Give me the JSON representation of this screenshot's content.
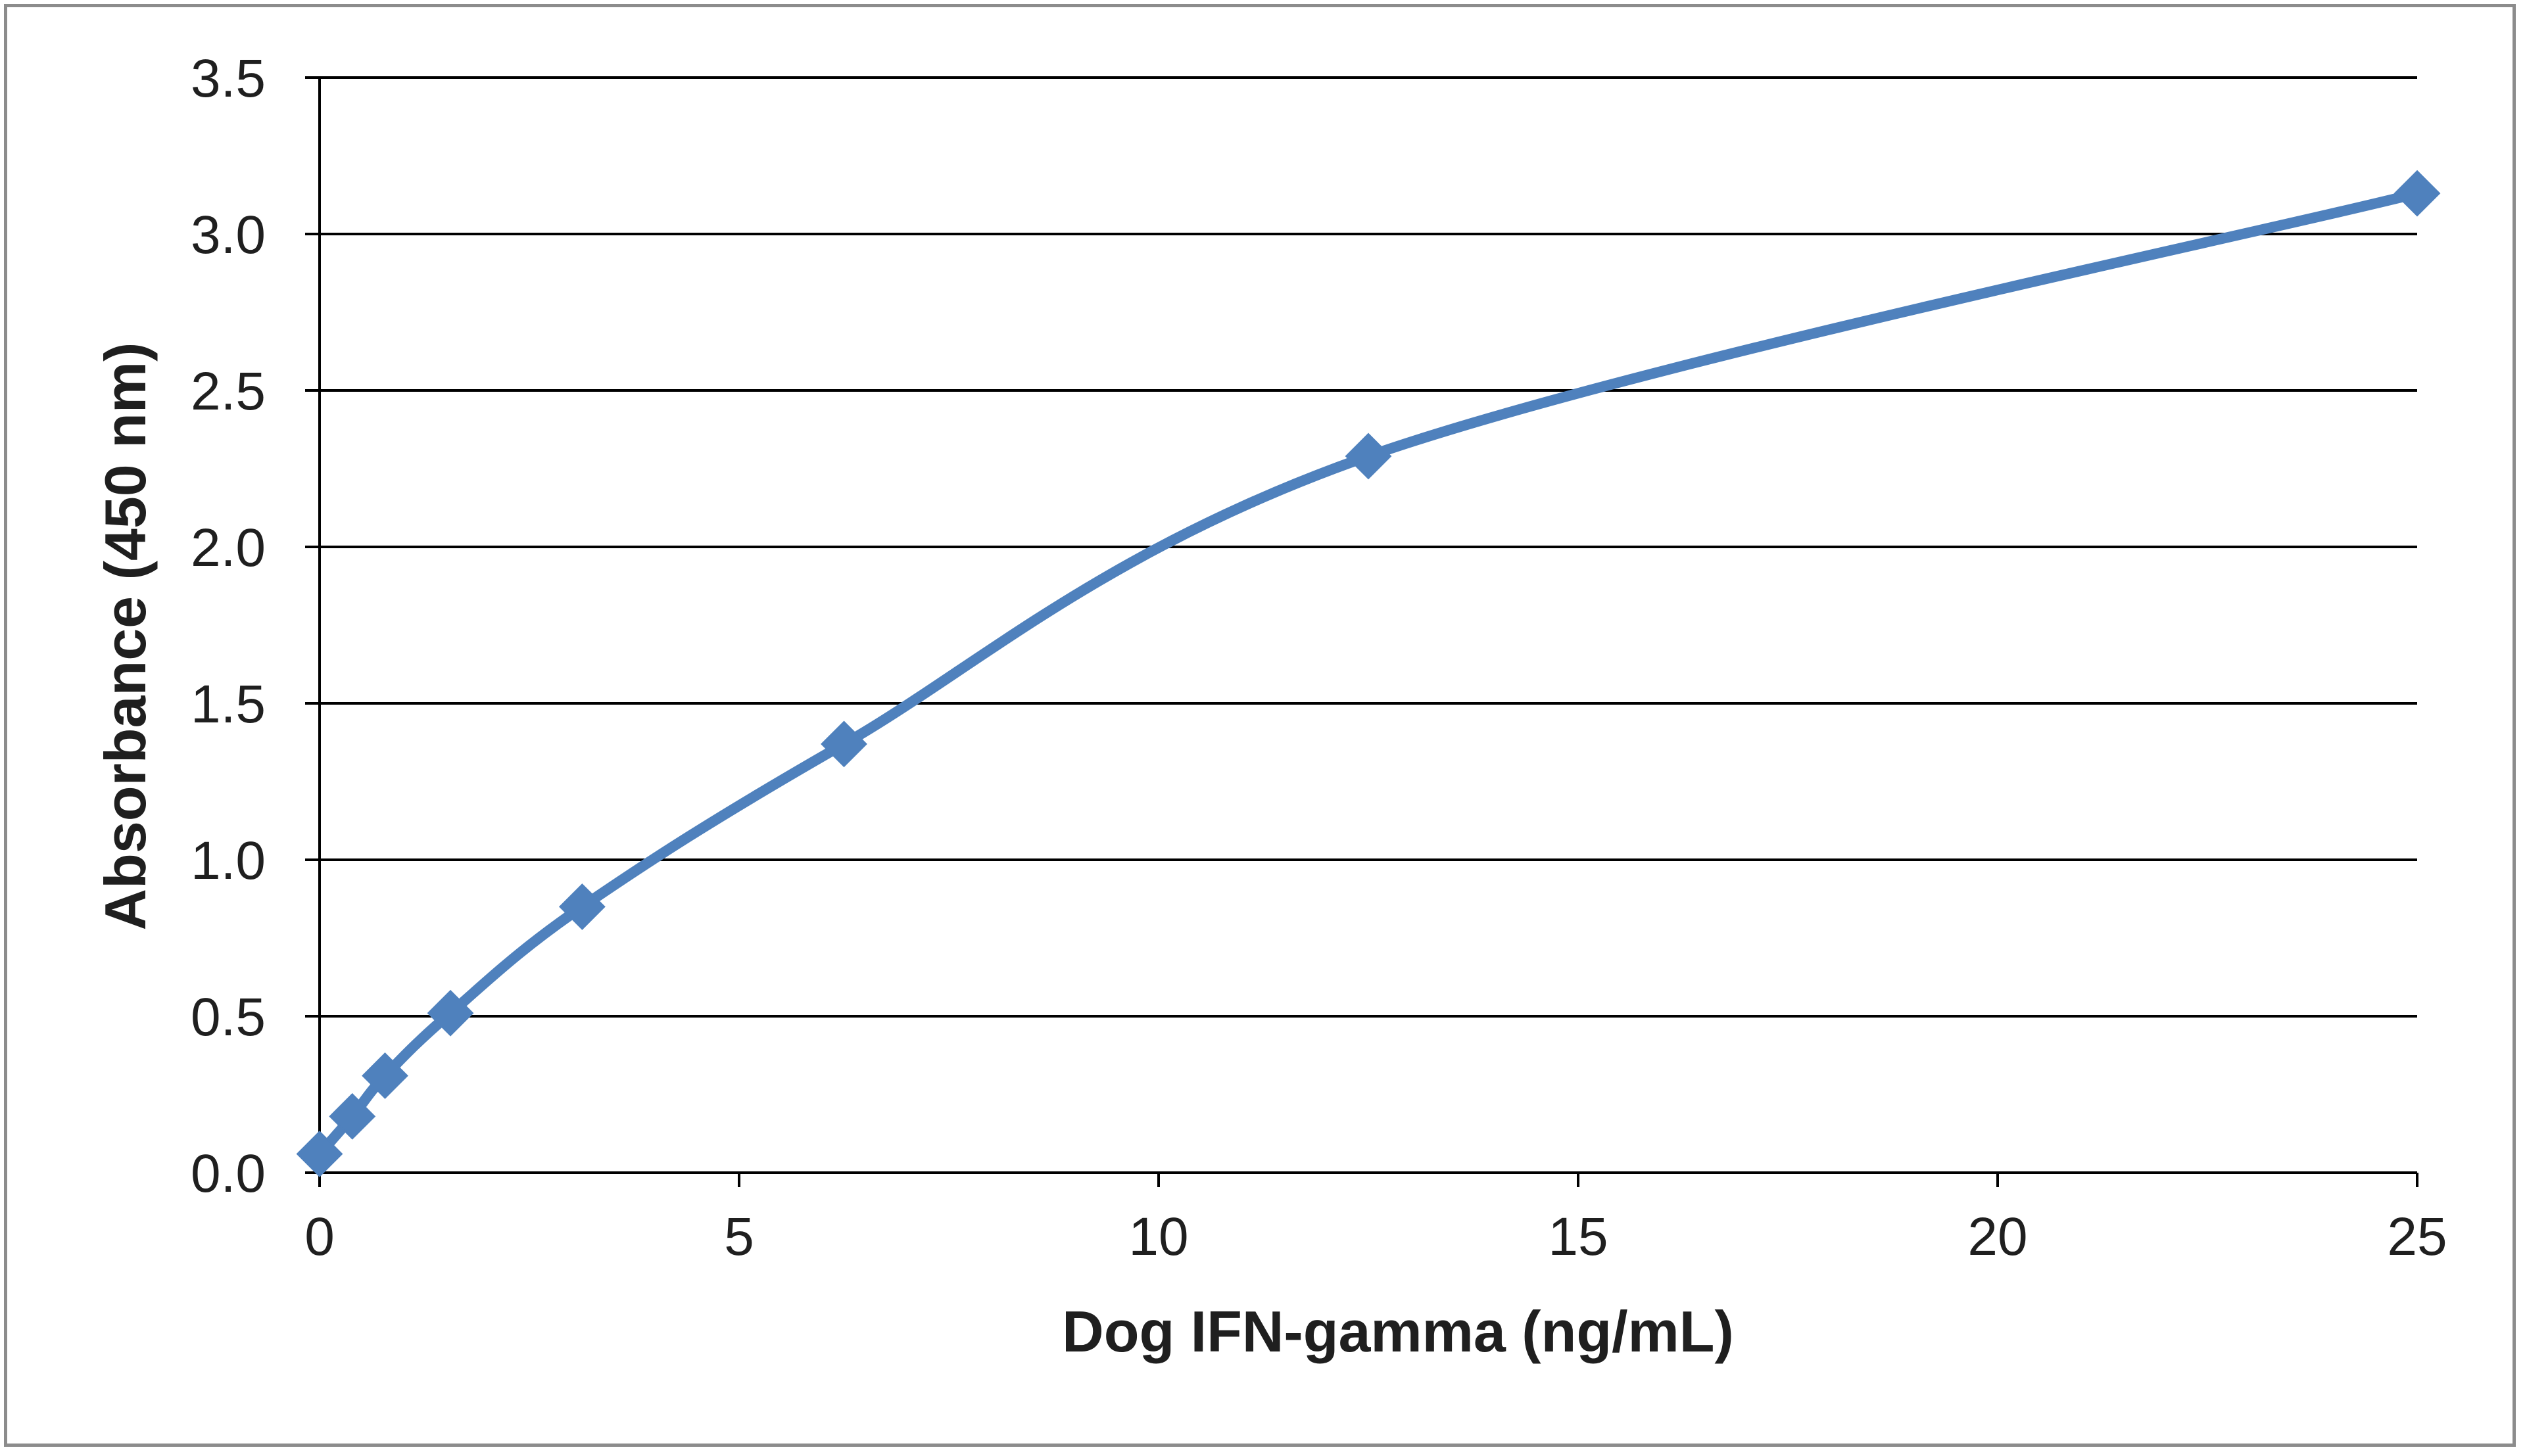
{
  "chart_data": {
    "type": "line",
    "title": "",
    "xlabel": "Dog IFN-gamma (ng/mL)",
    "ylabel": "Absorbance  (450 nm)",
    "xlim": [
      0,
      25
    ],
    "ylim": [
      0,
      3.5
    ],
    "x_ticks": [
      0,
      5,
      10,
      15,
      20,
      25
    ],
    "x_tick_labels": [
      "0",
      "5",
      "10",
      "15",
      "20",
      "25"
    ],
    "y_ticks": [
      0,
      0.5,
      1.0,
      1.5,
      2.0,
      2.5,
      3.0,
      3.5
    ],
    "y_tick_labels": [
      "0.0",
      "0.5",
      "1.0",
      "1.5",
      "2.0",
      "2.5",
      "3.0",
      "3.5"
    ],
    "grid": "horizontal",
    "legend": "none",
    "line_style": "smooth",
    "marker": "diamond",
    "color": "#4f81bd",
    "series": [
      {
        "x": [
          0,
          0.39,
          0.78,
          1.56,
          3.13,
          6.25,
          12.5,
          25
        ],
        "y": [
          0.06,
          0.18,
          0.31,
          0.51,
          0.85,
          1.37,
          2.29,
          3.13
        ]
      }
    ]
  }
}
